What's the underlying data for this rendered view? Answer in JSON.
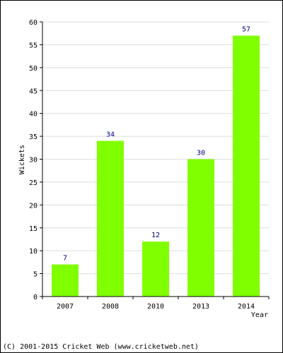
{
  "chart_data": {
    "type": "bar",
    "categories": [
      "2007",
      "2008",
      "2010",
      "2013",
      "2014"
    ],
    "values": [
      7,
      34,
      12,
      30,
      57
    ],
    "title": "",
    "xlabel": "Year",
    "ylabel": "Wickets",
    "ylim": [
      0,
      60
    ],
    "yticks": [
      0,
      5,
      10,
      15,
      20,
      25,
      30,
      35,
      40,
      45,
      50,
      55,
      60
    ],
    "grid": true,
    "legend": "none",
    "bar_color": "#80ff00",
    "label_color": "#000080"
  },
  "footer": {
    "copyright": "(C) 2001-2015 Cricket Web (www.cricketweb.net)"
  }
}
